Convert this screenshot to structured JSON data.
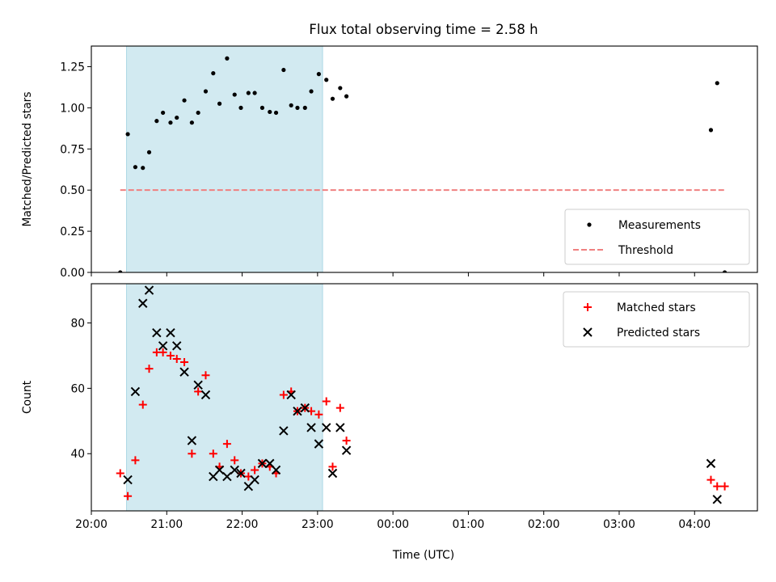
{
  "figure": {
    "title": "Flux total observing time = 2.58 h",
    "xlabel": "Time (UTC)"
  },
  "colors": {
    "shade": "#add8e6",
    "measurements": "#000000",
    "threshold": "#f08080",
    "matched": "#ff0000",
    "predicted": "#000000"
  },
  "chart_data": [
    {
      "type": "scatter",
      "panel": "top",
      "ylabel": "Matched/Predicted stars",
      "xlim": [
        "20:00",
        "04:50"
      ],
      "ylim": [
        0,
        1.375
      ],
      "x_ticks": [
        "20:00",
        "21:00",
        "22:00",
        "23:00",
        "00:00",
        "01:00",
        "02:00",
        "03:00",
        "04:00"
      ],
      "y_ticks": [
        "0.00",
        "0.25",
        "0.50",
        "0.75",
        "1.00",
        "1.25"
      ],
      "shaded_span": [
        "20:28",
        "23:04"
      ],
      "legend_position": "lower-right",
      "series": [
        {
          "name": "Measurements",
          "marker": "dot",
          "points": [
            [
              "20:23",
              0.0
            ],
            [
              "20:29",
              0.84
            ],
            [
              "20:35",
              0.64
            ],
            [
              "20:41",
              0.635
            ],
            [
              "20:46",
              0.73
            ],
            [
              "20:52",
              0.92
            ],
            [
              "20:57",
              0.97
            ],
            [
              "21:03",
              0.91
            ],
            [
              "21:08",
              0.94
            ],
            [
              "21:14",
              1.045
            ],
            [
              "21:20",
              0.91
            ],
            [
              "21:25",
              0.97
            ],
            [
              "21:31",
              1.1
            ],
            [
              "21:37",
              1.21
            ],
            [
              "21:42",
              1.025
            ],
            [
              "21:48",
              1.3
            ],
            [
              "21:54",
              1.08
            ],
            [
              "21:59",
              1.0
            ],
            [
              "22:05",
              1.09
            ],
            [
              "22:10",
              1.09
            ],
            [
              "22:16",
              1.0
            ],
            [
              "22:22",
              0.975
            ],
            [
              "22:27",
              0.97
            ],
            [
              "22:33",
              1.23
            ],
            [
              "22:39",
              1.015
            ],
            [
              "22:44",
              1.0
            ],
            [
              "22:50",
              1.0
            ],
            [
              "22:55",
              1.1
            ],
            [
              "23:01",
              1.205
            ],
            [
              "23:07",
              1.17
            ],
            [
              "23:12",
              1.055
            ],
            [
              "23:18",
              1.12
            ],
            [
              "23:23",
              1.07
            ],
            [
              "04:13",
              0.865
            ],
            [
              "04:18",
              1.15
            ],
            [
              "04:24",
              0.0
            ]
          ]
        },
        {
          "name": "Threshold",
          "marker": "dashed-line",
          "points": [
            [
              "20:23",
              0.5
            ],
            [
              "04:24",
              0.5
            ]
          ]
        }
      ]
    },
    {
      "type": "scatter",
      "panel": "bottom",
      "ylabel": "Count",
      "xlim": [
        "20:00",
        "04:50"
      ],
      "ylim": [
        22.5,
        92
      ],
      "x_ticks": [
        "20:00",
        "21:00",
        "22:00",
        "23:00",
        "00:00",
        "01:00",
        "02:00",
        "03:00",
        "04:00"
      ],
      "y_ticks": [
        "40",
        "60",
        "80"
      ],
      "shaded_span": [
        "20:28",
        "23:04"
      ],
      "legend_position": "upper-right",
      "series": [
        {
          "name": "Matched stars",
          "marker": "plus",
          "points": [
            [
              "20:23",
              34
            ],
            [
              "20:29",
              27
            ],
            [
              "20:35",
              38
            ],
            [
              "20:41",
              55
            ],
            [
              "20:46",
              66
            ],
            [
              "20:52",
              71
            ],
            [
              "20:57",
              71
            ],
            [
              "21:03",
              70
            ],
            [
              "21:08",
              69
            ],
            [
              "21:14",
              68
            ],
            [
              "21:20",
              40
            ],
            [
              "21:25",
              59
            ],
            [
              "21:31",
              64
            ],
            [
              "21:37",
              40
            ],
            [
              "21:42",
              36
            ],
            [
              "21:48",
              43
            ],
            [
              "21:54",
              38
            ],
            [
              "21:59",
              34
            ],
            [
              "22:05",
              33
            ],
            [
              "22:10",
              35
            ],
            [
              "22:16",
              37
            ],
            [
              "22:22",
              36
            ],
            [
              "22:27",
              34
            ],
            [
              "22:33",
              58
            ],
            [
              "22:39",
              59
            ],
            [
              "22:44",
              53
            ],
            [
              "22:50",
              54
            ],
            [
              "22:55",
              53
            ],
            [
              "23:01",
              52
            ],
            [
              "23:07",
              56
            ],
            [
              "23:12",
              36
            ],
            [
              "23:18",
              54
            ],
            [
              "23:23",
              44
            ],
            [
              "04:13",
              32
            ],
            [
              "04:18",
              30
            ],
            [
              "04:24",
              30
            ]
          ]
        },
        {
          "name": "Predicted stars",
          "marker": "x",
          "points": [
            [
              "20:29",
              32
            ],
            [
              "20:35",
              59
            ],
            [
              "20:41",
              86
            ],
            [
              "20:46",
              90
            ],
            [
              "20:52",
              77
            ],
            [
              "20:57",
              73
            ],
            [
              "21:03",
              77
            ],
            [
              "21:08",
              73
            ],
            [
              "21:14",
              65
            ],
            [
              "21:20",
              44
            ],
            [
              "21:25",
              61
            ],
            [
              "21:31",
              58
            ],
            [
              "21:37",
              33
            ],
            [
              "21:42",
              35
            ],
            [
              "21:48",
              33
            ],
            [
              "21:54",
              35
            ],
            [
              "21:59",
              34
            ],
            [
              "22:05",
              30
            ],
            [
              "22:10",
              32
            ],
            [
              "22:16",
              37
            ],
            [
              "22:22",
              37
            ],
            [
              "22:27",
              35
            ],
            [
              "22:33",
              47
            ],
            [
              "22:39",
              58
            ],
            [
              "22:44",
              53
            ],
            [
              "22:50",
              54
            ],
            [
              "22:55",
              48
            ],
            [
              "23:01",
              43
            ],
            [
              "23:07",
              48
            ],
            [
              "23:12",
              34
            ],
            [
              "23:18",
              48
            ],
            [
              "23:23",
              41
            ],
            [
              "04:13",
              37
            ],
            [
              "04:18",
              26
            ]
          ]
        }
      ]
    }
  ]
}
